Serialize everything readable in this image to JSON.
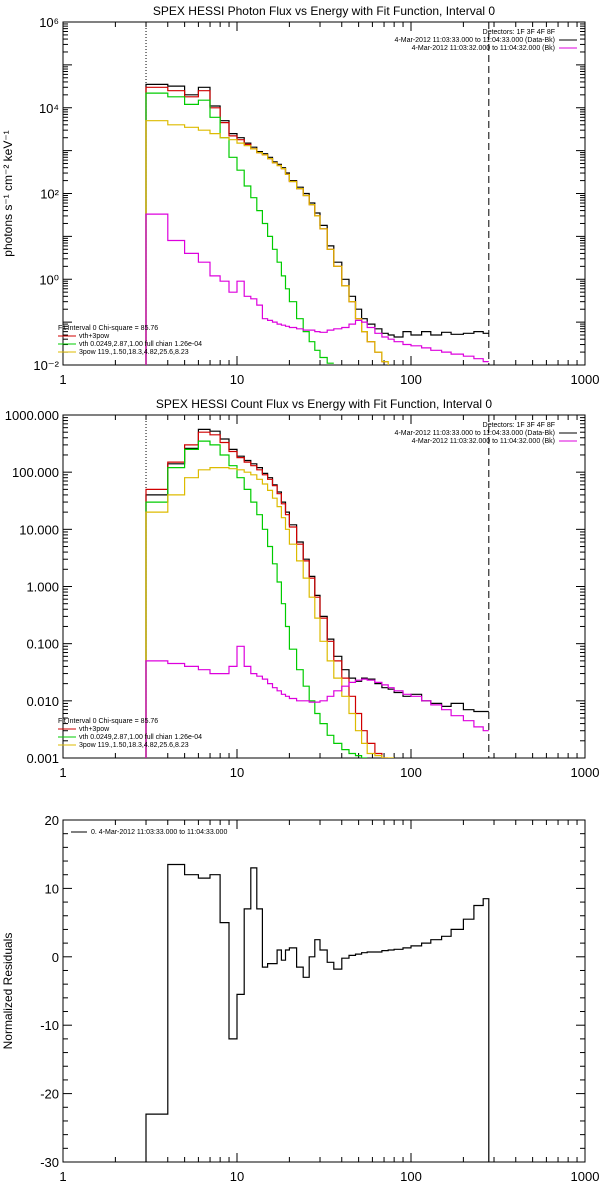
{
  "chart_data": [
    {
      "type": "line",
      "title": "SPEX HESSI Photon Flux vs Energy with Fit Function, Interval 0",
      "xlabel": "",
      "ylabel": "photons s⁻¹ cm⁻² keV⁻¹",
      "xscale": "log",
      "yscale": "log",
      "xlim": [
        1,
        1000
      ],
      "ylim": [
        0.01,
        1000000
      ],
      "x_ticks": [
        1,
        10,
        100,
        1000
      ],
      "x_tick_labels": [
        "1",
        "10",
        "100",
        "1000"
      ],
      "y_ticks": [
        0.01,
        1,
        100,
        10000,
        1000000
      ],
      "y_tick_labels": [
        "10⁻²",
        "10⁰",
        "10²",
        "10⁴",
        "10⁶"
      ],
      "vlines": [
        {
          "x": 3,
          "style": "dotted"
        },
        {
          "x": 280,
          "style": "dashed"
        }
      ],
      "header_lines": [
        "Detectors: 1F 3F 4F 8F",
        "4-Mar-2012 11:03:33.000 to 11:04:33.000 (Data-Bk)",
        "4-Mar-2012 11:03:32.000 to 11:04:32.000 (Bk)"
      ],
      "legend_title": "Fit Interval 0   Chi-square = 85.76",
      "legend": [
        {
          "label": "vth+3pow",
          "color": "#d00000"
        },
        {
          "label": "vth 0.0249,2.87,1.00  full chian 1.26e-04",
          "color": "#00cc00"
        },
        {
          "label": "3pow 119.,1.50,18.3,4.82,25.6,8.23",
          "color": "#ddbb00"
        }
      ],
      "series": [
        {
          "name": "Data-Bk",
          "color": "#000000",
          "edges": [
            3,
            4,
            5,
            6,
            7,
            8,
            9,
            10,
            11,
            12,
            13,
            14,
            15,
            16,
            17,
            18,
            19,
            20,
            22,
            24,
            26,
            28,
            30,
            33,
            36,
            40,
            44,
            48,
            52,
            56,
            62,
            68,
            74,
            80,
            90,
            100,
            115,
            130,
            150,
            170,
            200,
            230,
            260,
            280
          ],
          "values": [
            35000,
            32000,
            20000,
            30000,
            11000,
            5000,
            2500,
            2000,
            1500,
            1200,
            950,
            850,
            700,
            550,
            480,
            400,
            300,
            200,
            140,
            100,
            60,
            35,
            18,
            6,
            2.5,
            1,
            0.4,
            0.2,
            0.12,
            0.09,
            0.07,
            0.055,
            0.05,
            0.045,
            0.06,
            0.05,
            0.06,
            0.05,
            0.058,
            0.052,
            0.055,
            0.06,
            0.055
          ]
        },
        {
          "name": "vth+3pow",
          "color": "#d00000",
          "edges": [
            3,
            4,
            5,
            6,
            7,
            8,
            9,
            10,
            11,
            12,
            13,
            14,
            15,
            16,
            17,
            18,
            19,
            20,
            22,
            24,
            26,
            28,
            30,
            33,
            36,
            40,
            44,
            48,
            52,
            56,
            62,
            68,
            74
          ],
          "values": [
            30000,
            25000,
            18000,
            25000,
            10000,
            4500,
            2200,
            1800,
            1400,
            1100,
            900,
            800,
            650,
            520,
            450,
            380,
            280,
            190,
            130,
            90,
            55,
            30,
            15,
            5,
            2,
            0.7,
            0.3,
            0.12,
            0.06,
            0.035,
            0.02,
            0.012
          ]
        },
        {
          "name": "vth",
          "color": "#00cc00",
          "edges": [
            3,
            4,
            5,
            6,
            7,
            8,
            9,
            10,
            11,
            12,
            13,
            14,
            15,
            16,
            17,
            18,
            19,
            20,
            22,
            24,
            26,
            28,
            30,
            33,
            36
          ],
          "values": [
            22000,
            18000,
            12000,
            15000,
            6000,
            2000,
            700,
            350,
            150,
            80,
            40,
            20,
            10,
            5,
            2.5,
            1.2,
            0.6,
            0.3,
            0.12,
            0.06,
            0.035,
            0.022,
            0.015,
            0.011
          ]
        },
        {
          "name": "3pow",
          "color": "#ddbb00",
          "edges": [
            3,
            4,
            5,
            6,
            7,
            8,
            9,
            10,
            11,
            12,
            13,
            14,
            15,
            16,
            17,
            18,
            19,
            20,
            22,
            24,
            26,
            28,
            30,
            33,
            36,
            40,
            44,
            48,
            52,
            56,
            62,
            68,
            74,
            80
          ],
          "values": [
            5000,
            4000,
            3500,
            3000,
            2500,
            2000,
            1800,
            1500,
            1300,
            1100,
            900,
            800,
            650,
            520,
            450,
            380,
            280,
            190,
            130,
            90,
            55,
            30,
            15,
            5,
            2,
            0.7,
            0.3,
            0.12,
            0.06,
            0.035,
            0.02,
            0.012,
            0.009
          ]
        },
        {
          "name": "Bk",
          "color": "#dd00dd",
          "edges": [
            3,
            4,
            5,
            6,
            7,
            8,
            9,
            10,
            11,
            12,
            13,
            14,
            15,
            16,
            17,
            18,
            19,
            20,
            22,
            24,
            26,
            28,
            30,
            33,
            36,
            40,
            44,
            48,
            52,
            56,
            62,
            68,
            74,
            80,
            90,
            100,
            115,
            130,
            150,
            170,
            200,
            230,
            260,
            280
          ],
          "values": [
            33,
            8,
            4,
            2.5,
            1.2,
            0.9,
            0.5,
            0.9,
            0.4,
            0.35,
            0.25,
            0.12,
            0.11,
            0.1,
            0.09,
            0.085,
            0.08,
            0.075,
            0.07,
            0.065,
            0.065,
            0.06,
            0.058,
            0.065,
            0.07,
            0.075,
            0.09,
            0.11,
            0.1,
            0.075,
            0.055,
            0.045,
            0.04,
            0.035,
            0.03,
            0.028,
            0.025,
            0.022,
            0.02,
            0.018,
            0.016,
            0.014,
            0.012
          ]
        }
      ]
    },
    {
      "type": "line",
      "title": "SPEX HESSI Count Flux vs Energy with Fit Function, Interval 0",
      "xlabel": "",
      "ylabel": "",
      "xscale": "log",
      "yscale": "log",
      "xlim": [
        1,
        1000
      ],
      "ylim": [
        0.001,
        1000
      ],
      "x_ticks": [
        1,
        10,
        100,
        1000
      ],
      "x_tick_labels": [
        "1",
        "10",
        "100",
        "1000"
      ],
      "y_ticks": [
        0.001,
        0.01,
        0.1,
        1,
        10,
        100,
        1000
      ],
      "y_tick_labels": [
        "0.001",
        "0.010",
        "0.100",
        "1.000",
        "10.000",
        "100.000",
        "1000.000"
      ],
      "vlines": [
        {
          "x": 3,
          "style": "dotted"
        },
        {
          "x": 280,
          "style": "dashed"
        }
      ],
      "header_lines": [
        "Detectors: 1F 3F 4F 8F",
        "4-Mar-2012 11:03:33.000 to 11:04:33.000 (Data-Bk)",
        "4-Mar-2012 11:03:32.000 to 11:04:32.000 (Bk)"
      ],
      "legend_title": "Fit Interval 0   Chi-square = 85.76",
      "legend": [
        {
          "label": "vth+3pow",
          "color": "#d00000"
        },
        {
          "label": "vth 0.0249,2.87,1.00  full chian 1.26e-04",
          "color": "#00cc00"
        },
        {
          "label": "3pow 119.,1.50,18.3,4.82,25.6,8.23",
          "color": "#ddbb00"
        }
      ],
      "series": [
        {
          "name": "Data-Bk",
          "color": "#000000",
          "edges": [
            3,
            4,
            5,
            6,
            7,
            8,
            9,
            10,
            11,
            12,
            13,
            14,
            15,
            16,
            17,
            18,
            19,
            20,
            22,
            24,
            26,
            28,
            30,
            33,
            36,
            40,
            44,
            48,
            52,
            56,
            62,
            68,
            74,
            80,
            90,
            100,
            115,
            130,
            150,
            170,
            200,
            230,
            260,
            280
          ],
          "values": [
            40,
            140,
            260,
            560,
            520,
            380,
            250,
            190,
            160,
            140,
            120,
            95,
            80,
            60,
            45,
            30,
            20,
            12,
            6,
            3,
            1.5,
            0.7,
            0.3,
            0.12,
            0.06,
            0.035,
            0.025,
            0.022,
            0.025,
            0.024,
            0.02,
            0.017,
            0.016,
            0.014,
            0.012,
            0.013,
            0.01,
            0.009,
            0.008,
            0.009,
            0.007,
            0.0065,
            0.0065
          ]
        },
        {
          "name": "vth+3pow",
          "color": "#d00000",
          "edges": [
            3,
            4,
            5,
            6,
            7,
            8,
            9,
            10,
            11,
            12,
            13,
            14,
            15,
            16,
            17,
            18,
            19,
            20,
            22,
            24,
            26,
            28,
            30,
            33,
            36,
            40,
            44,
            48,
            52,
            56,
            62,
            68,
            74
          ],
          "values": [
            50,
            150,
            300,
            500,
            450,
            330,
            230,
            180,
            150,
            130,
            110,
            90,
            75,
            58,
            42,
            28,
            18,
            11,
            5.5,
            2.8,
            1.4,
            0.65,
            0.28,
            0.11,
            0.05,
            0.025,
            0.012,
            0.006,
            0.003,
            0.0018,
            0.0012,
            0.001
          ]
        },
        {
          "name": "vth",
          "color": "#00cc00",
          "edges": [
            3,
            4,
            5,
            6,
            7,
            8,
            9,
            10,
            11,
            12,
            13,
            14,
            15,
            16,
            17,
            18,
            19,
            20,
            22,
            24,
            26,
            28,
            30,
            33,
            36,
            40,
            44,
            48,
            52,
            56
          ],
          "values": [
            30,
            120,
            250,
            350,
            300,
            200,
            130,
            80,
            50,
            30,
            18,
            10,
            5,
            2.5,
            1.2,
            0.5,
            0.2,
            0.08,
            0.035,
            0.018,
            0.01,
            0.006,
            0.004,
            0.0025,
            0.0018,
            0.0014,
            0.0012,
            0.0011,
            0.001
          ]
        },
        {
          "name": "3pow",
          "color": "#ddbb00",
          "edges": [
            3,
            4,
            5,
            6,
            7,
            8,
            9,
            10,
            11,
            12,
            13,
            14,
            15,
            16,
            17,
            18,
            19,
            20,
            22,
            24,
            26,
            28,
            30,
            33,
            36,
            40,
            44,
            48,
            52,
            56,
            62,
            68,
            74,
            80
          ],
          "values": [
            20,
            40,
            80,
            110,
            120,
            120,
            115,
            110,
            100,
            90,
            75,
            62,
            48,
            35,
            25,
            16,
            10,
            5.5,
            2.8,
            1.4,
            0.65,
            0.28,
            0.11,
            0.05,
            0.025,
            0.012,
            0.006,
            0.003,
            0.0018,
            0.0012,
            0.0011,
            0.001,
            0.001
          ]
        },
        {
          "name": "Bk",
          "color": "#dd00dd",
          "edges": [
            3,
            4,
            5,
            6,
            7,
            8,
            9,
            10,
            11,
            12,
            13,
            14,
            15,
            16,
            17,
            18,
            19,
            20,
            22,
            24,
            26,
            28,
            30,
            33,
            36,
            40,
            44,
            48,
            52,
            56,
            62,
            68,
            74,
            80,
            90,
            100,
            115,
            130,
            150,
            170,
            200,
            230,
            260,
            280
          ],
          "values": [
            0.05,
            0.045,
            0.04,
            0.035,
            0.03,
            0.03,
            0.04,
            0.09,
            0.04,
            0.03,
            0.027,
            0.024,
            0.02,
            0.017,
            0.015,
            0.013,
            0.012,
            0.011,
            0.01,
            0.01,
            0.0095,
            0.0095,
            0.01,
            0.012,
            0.015,
            0.018,
            0.021,
            0.023,
            0.024,
            0.023,
            0.021,
            0.019,
            0.017,
            0.015,
            0.013,
            0.012,
            0.01,
            0.0085,
            0.007,
            0.0055,
            0.0045,
            0.0035,
            0.003
          ]
        }
      ]
    },
    {
      "type": "line",
      "title": "",
      "xlabel": "",
      "ylabel": "Normalized Residuals",
      "xscale": "log",
      "yscale": "linear",
      "xlim": [
        1,
        1000
      ],
      "ylim": [
        -30,
        20
      ],
      "x_ticks": [
        1,
        10,
        100,
        1000
      ],
      "x_tick_labels": [
        "1",
        "10",
        "100",
        "1000"
      ],
      "y_ticks": [
        -30,
        -20,
        -10,
        0,
        10,
        20
      ],
      "y_tick_labels": [
        "-30",
        "-20",
        "-10",
        "0",
        "10",
        "20"
      ],
      "legend": [
        {
          "label": "0. 4-Mar-2012 11:03:33.000 to 11:04:33.000",
          "color": "#000000"
        }
      ],
      "series": [
        {
          "name": "0",
          "color": "#000000",
          "edges": [
            3,
            4,
            5,
            6,
            7,
            8,
            9,
            10,
            11,
            12,
            13,
            14,
            15,
            16,
            17,
            18,
            19,
            20,
            22,
            24,
            26,
            28,
            30,
            33,
            36,
            40,
            44,
            48,
            52,
            56,
            62,
            68,
            74,
            80,
            90,
            100,
            115,
            130,
            150,
            170,
            200,
            230,
            260,
            280
          ],
          "values": [
            -23,
            13.5,
            12,
            11.5,
            12,
            5,
            -12,
            -5.5,
            7,
            13,
            7,
            -1.5,
            -1,
            -1,
            1,
            -0.5,
            1,
            1.3,
            -1.5,
            -3,
            0,
            2.5,
            1,
            -0.8,
            -1.8,
            -0.2,
            0.2,
            0.4,
            0.6,
            0.7,
            0.7,
            0.9,
            1,
            1.1,
            1.3,
            1.6,
            2,
            2.5,
            3,
            4,
            5.5,
            7.5,
            8.5
          ]
        }
      ]
    }
  ]
}
